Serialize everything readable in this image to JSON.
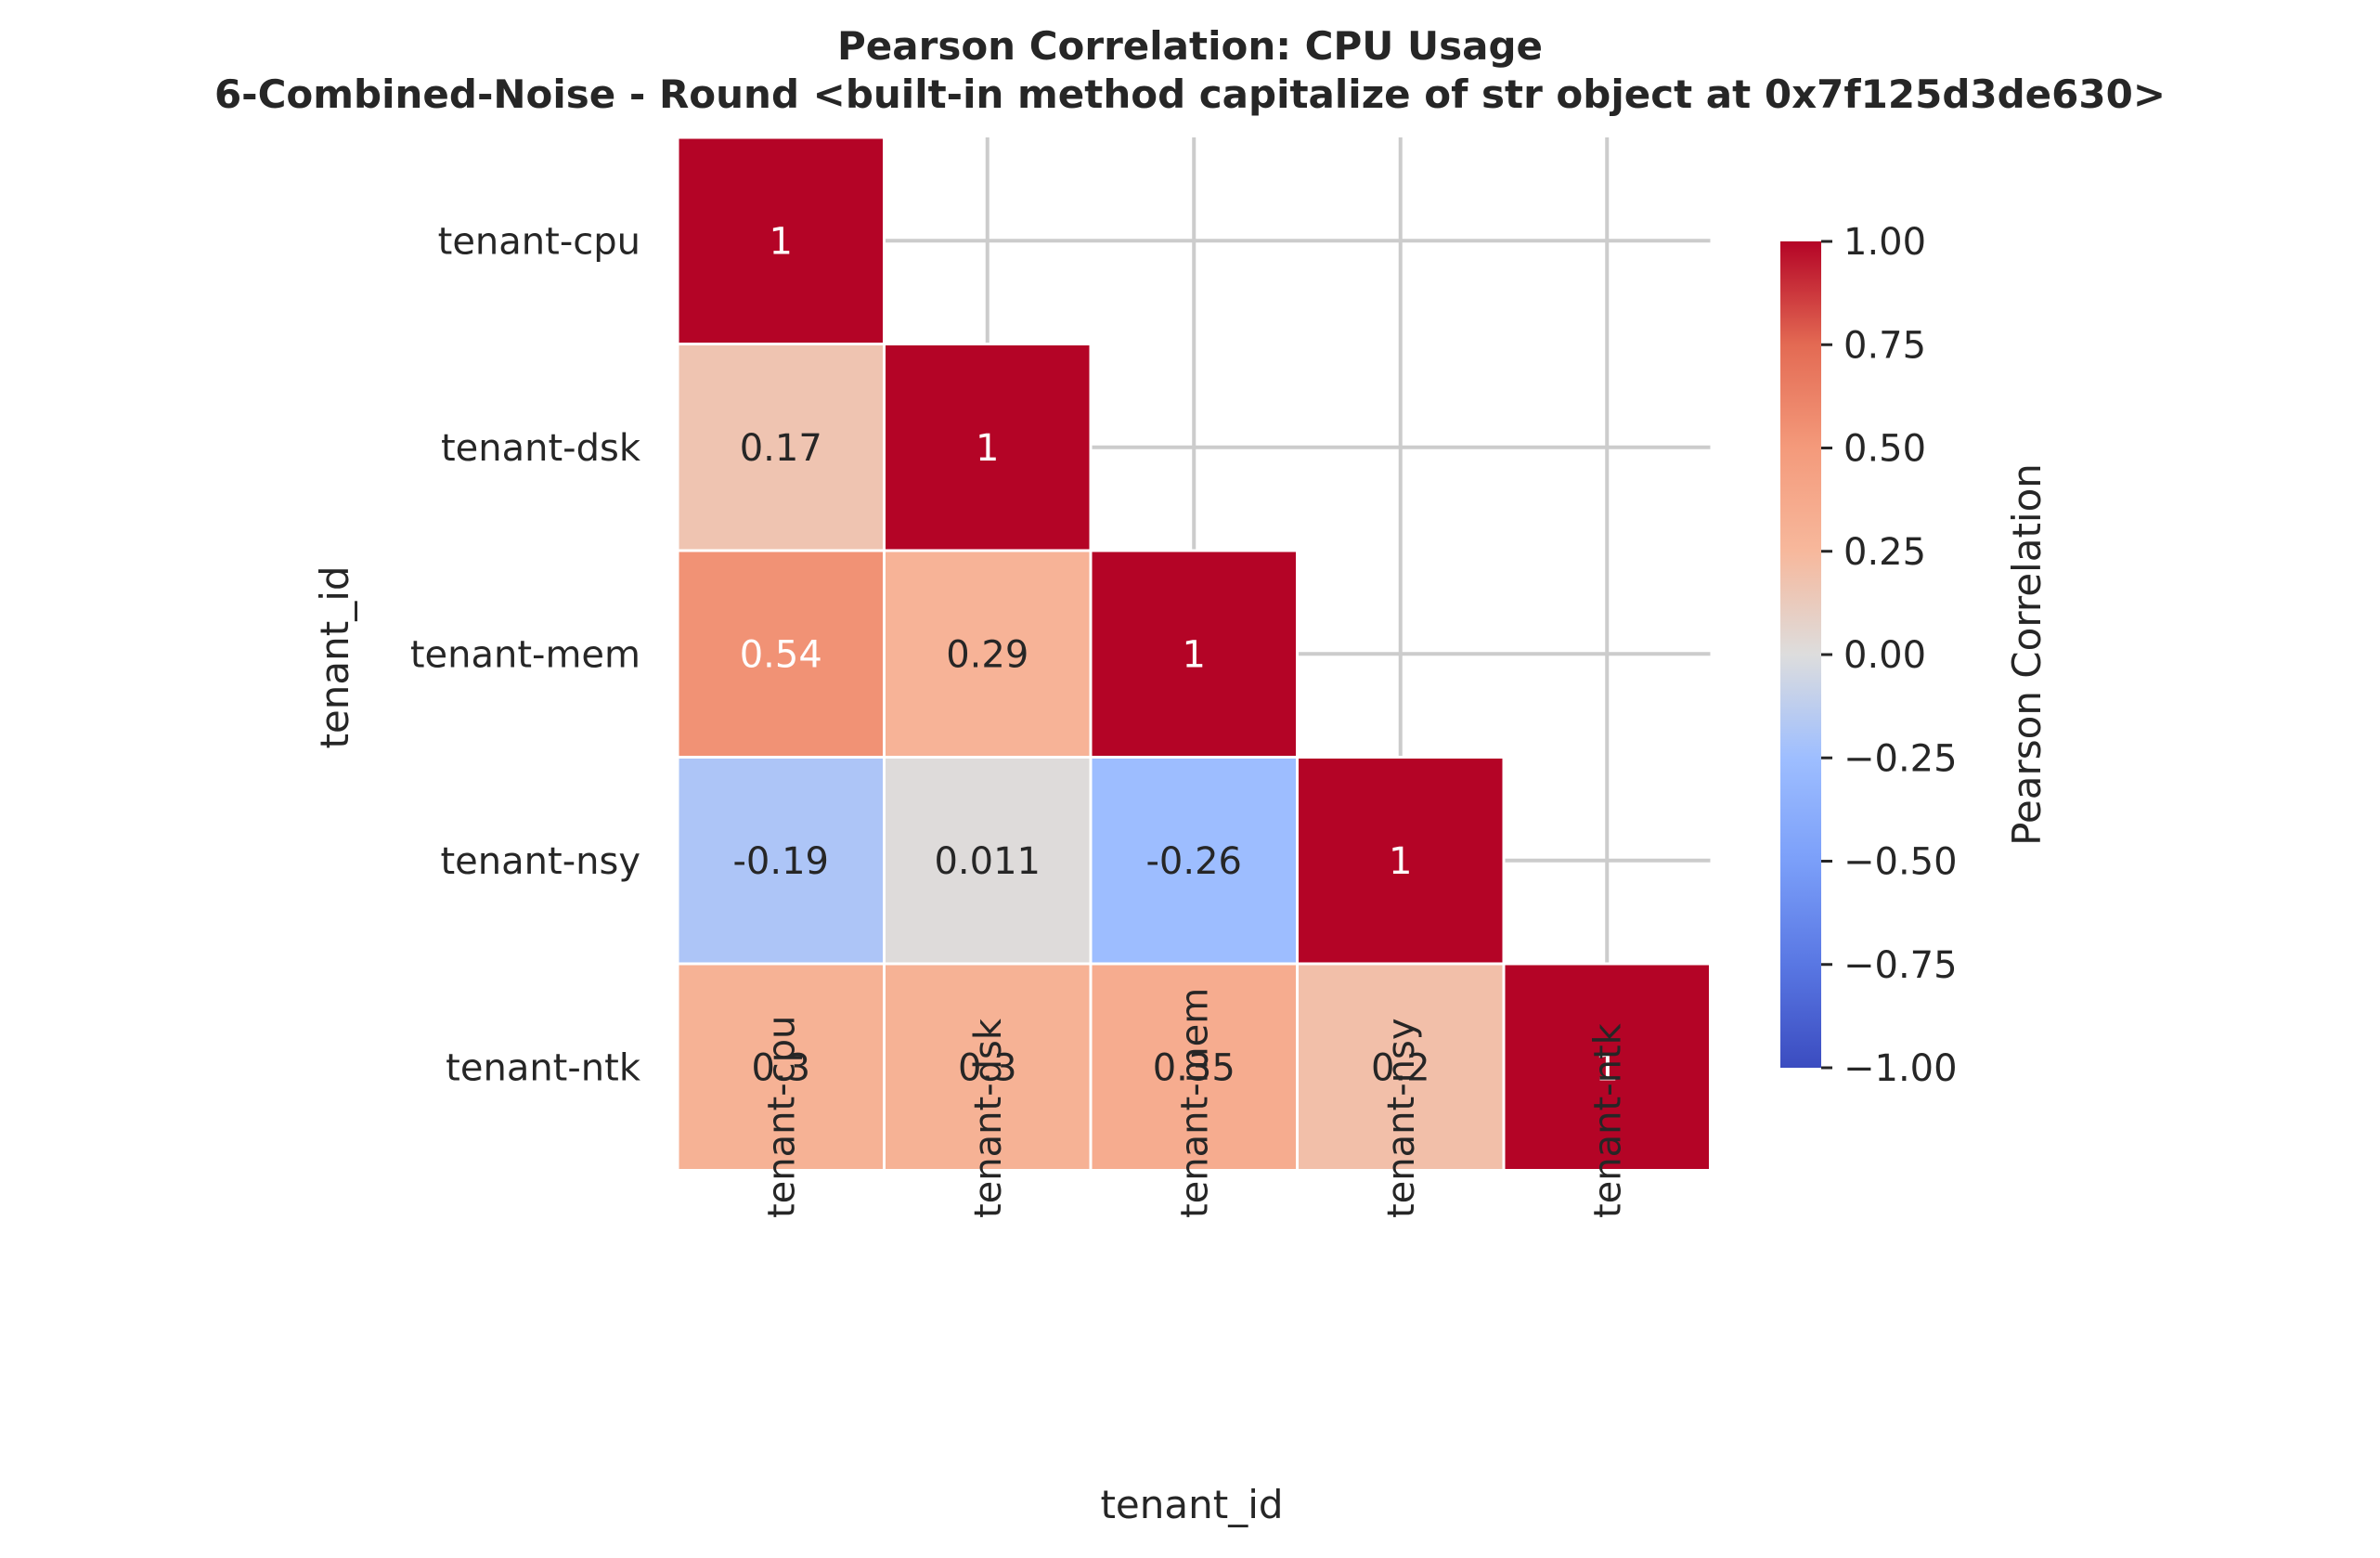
{
  "chart_data": {
    "type": "heatmap",
    "title": "Pearson Correlation: CPU Usage",
    "subtitle": "6-Combined-Noise - Round <built-in method capitalize of str object at 0x7f125d3de630>",
    "xlabel": "tenant_id",
    "ylabel": "tenant_id",
    "x_categories": [
      "tenant-cpu",
      "tenant-dsk",
      "tenant-mem",
      "tenant-nsy",
      "tenant-ntk"
    ],
    "y_categories": [
      "tenant-cpu",
      "tenant-dsk",
      "tenant-mem",
      "tenant-nsy",
      "tenant-ntk"
    ],
    "mask": "upper-triangle",
    "cells": [
      {
        "row": "tenant-cpu",
        "col": "tenant-cpu",
        "value": 1,
        "label": "1"
      },
      {
        "row": "tenant-dsk",
        "col": "tenant-cpu",
        "value": 0.17,
        "label": "0.17"
      },
      {
        "row": "tenant-dsk",
        "col": "tenant-dsk",
        "value": 1,
        "label": "1"
      },
      {
        "row": "tenant-mem",
        "col": "tenant-cpu",
        "value": 0.54,
        "label": "0.54"
      },
      {
        "row": "tenant-mem",
        "col": "tenant-dsk",
        "value": 0.29,
        "label": "0.29"
      },
      {
        "row": "tenant-mem",
        "col": "tenant-mem",
        "value": 1,
        "label": "1"
      },
      {
        "row": "tenant-nsy",
        "col": "tenant-cpu",
        "value": -0.19,
        "label": "-0.19"
      },
      {
        "row": "tenant-nsy",
        "col": "tenant-dsk",
        "value": 0.011,
        "label": "0.011"
      },
      {
        "row": "tenant-nsy",
        "col": "tenant-mem",
        "value": -0.26,
        "label": "-0.26"
      },
      {
        "row": "tenant-nsy",
        "col": "tenant-nsy",
        "value": 1,
        "label": "1"
      },
      {
        "row": "tenant-ntk",
        "col": "tenant-cpu",
        "value": 0.3,
        "label": "0.3"
      },
      {
        "row": "tenant-ntk",
        "col": "tenant-dsk",
        "value": 0.3,
        "label": "0.3"
      },
      {
        "row": "tenant-ntk",
        "col": "tenant-mem",
        "value": 0.35,
        "label": "0.35"
      },
      {
        "row": "tenant-ntk",
        "col": "tenant-nsy",
        "value": 0.2,
        "label": "0.2"
      },
      {
        "row": "tenant-ntk",
        "col": "tenant-ntk",
        "value": 1,
        "label": "1"
      }
    ],
    "colorbar": {
      "label": "Pearson Correlation",
      "colormap": "coolwarm",
      "range": [
        -1,
        1
      ],
      "ticks": [
        1.0,
        0.75,
        0.5,
        0.25,
        0.0,
        -0.25,
        -0.5,
        -0.75,
        -1.0
      ],
      "tick_labels": [
        "1.00",
        "0.75",
        "0.50",
        "0.25",
        "0.00",
        "−0.25",
        "−0.50",
        "−0.75",
        "−1.00"
      ]
    },
    "grid": true,
    "colors": {
      "low": "#3b4cc0",
      "mid": "#dddddd",
      "high": "#b40426",
      "grid": "#cccccc",
      "text_dark": "#262626",
      "text_light": "#ffffff"
    }
  }
}
